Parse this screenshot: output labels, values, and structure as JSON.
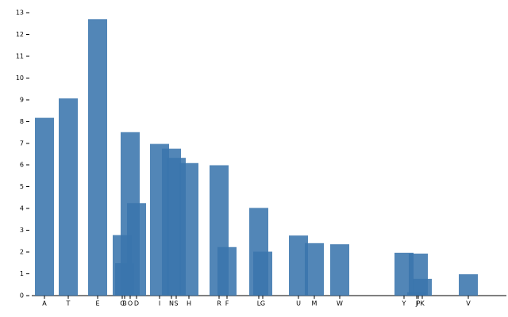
{
  "chart_data": {
    "type": "bar",
    "categories": [
      "A",
      "T",
      "E",
      "C",
      "B",
      "O",
      "D",
      "I",
      "N",
      "S",
      "H",
      "R",
      "F",
      "L",
      "G",
      "U",
      "M",
      "W",
      "Y",
      "J",
      "P",
      "K",
      "V"
    ],
    "x": [
      16,
      46,
      83,
      114,
      117,
      124,
      132,
      161,
      176,
      182,
      198,
      236,
      246,
      286,
      291,
      336,
      356,
      388,
      469,
      485,
      487,
      492,
      550
    ],
    "values": [
      8.17,
      9.06,
      12.7,
      2.78,
      1.49,
      7.51,
      4.25,
      6.97,
      6.75,
      6.33,
      6.09,
      5.99,
      2.23,
      4.03,
      2.02,
      2.76,
      2.41,
      2.36,
      1.97,
      0.15,
      1.93,
      0.77,
      0.98
    ],
    "color": "#3a75ad",
    "xlim": [
      0,
      598
    ],
    "ylim": [
      0,
      13
    ],
    "yticks": [
      0,
      1,
      2,
      3,
      4,
      5,
      6,
      7,
      8,
      9,
      10,
      11,
      12,
      13
    ]
  }
}
